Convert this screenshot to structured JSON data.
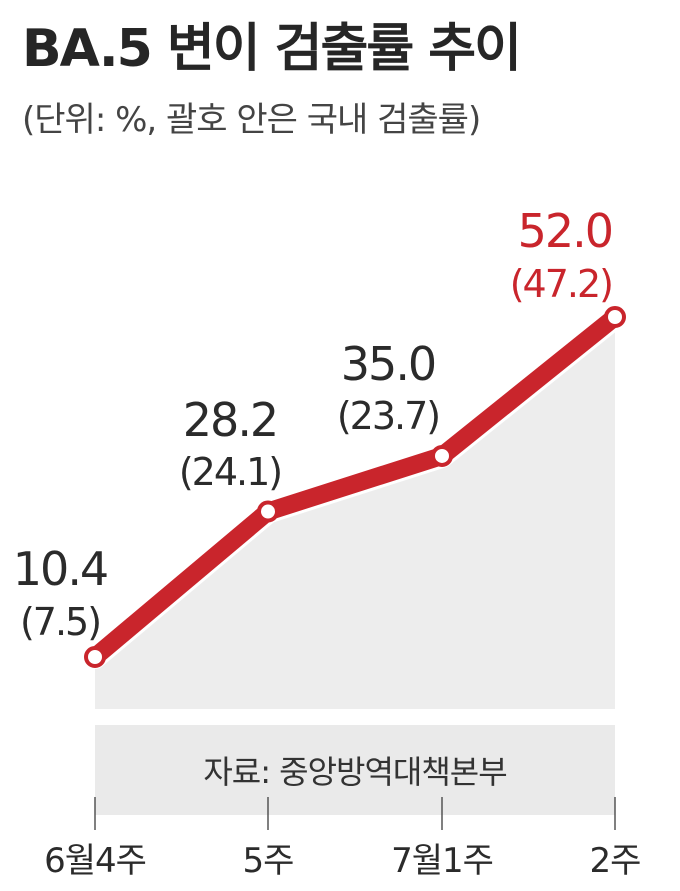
{
  "title": "BA.5 변이 검출률 추이",
  "subtitle": "(단위: %, 괄호 안은 국내 검출률)",
  "source": "자료: 중앙방역대책본부",
  "colors": {
    "line": "#c9252c",
    "area": "#ededed",
    "highlight": "#c9252c",
    "text": "#2b2b2b"
  },
  "chart_data": {
    "type": "line",
    "categories": [
      "6월4주",
      "5주",
      "7월1주",
      "2주"
    ],
    "series": [
      {
        "name": "",
        "values": [
          10.4,
          28.2,
          35.0,
          52.0
        ]
      },
      {
        "name": "",
        "values": [
          7.5,
          24.1,
          23.7,
          47.2
        ]
      }
    ],
    "value_labels": [
      "10.4",
      "28.2",
      "35.0",
      "52.0"
    ],
    "sub_labels": [
      "(7.5)",
      "(24.1)",
      "(23.7)",
      "(47.2)"
    ],
    "highlight_index": 3,
    "ylim": [
      0,
      52
    ],
    "grid": false,
    "xlabel": "",
    "ylabel": ""
  }
}
